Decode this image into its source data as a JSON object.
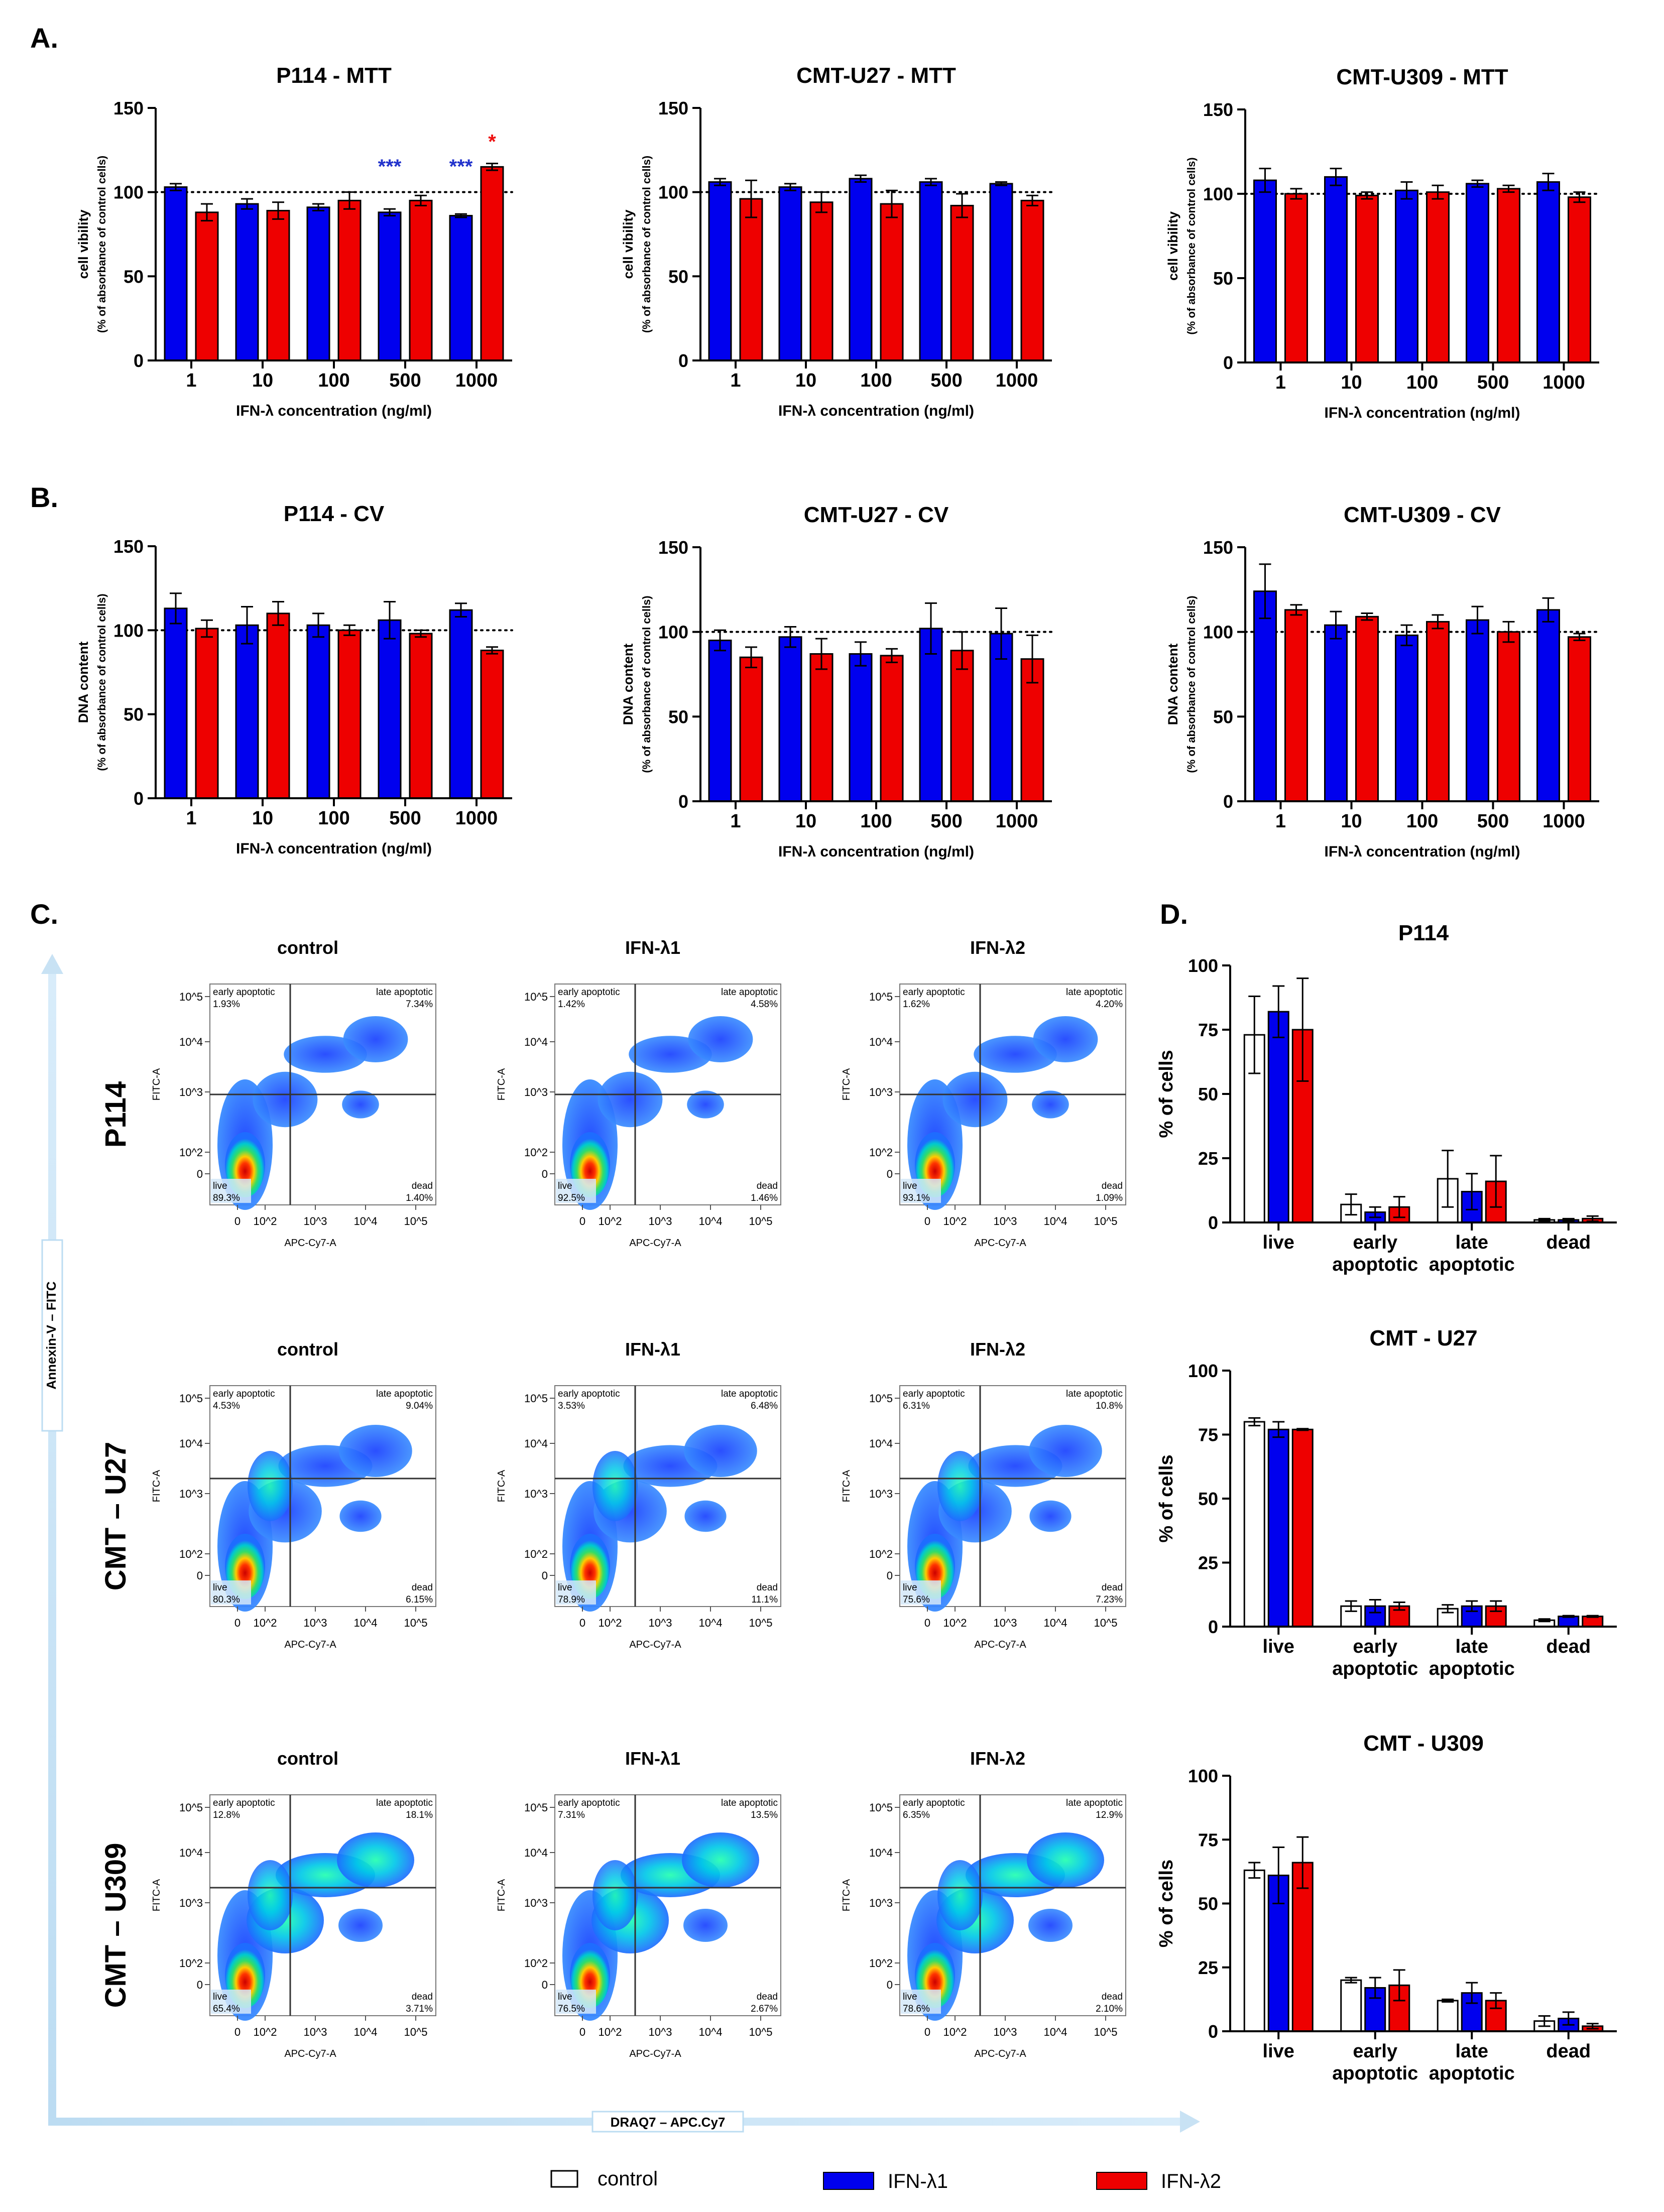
{
  "figure": {
    "panel_labels": [
      "A.",
      "B.",
      "C.",
      "D."
    ],
    "x_axis_title": "IFN-λ concentration (ng/ml)",
    "mtt_ylabel": [
      "cell vibility",
      "(% of absorbance of control cells)"
    ],
    "cv_ylabel": [
      "DNA content",
      "(% of absorbance of control cells)"
    ],
    "pct_ylabel": "% of cells",
    "flow_row_labels": [
      "P114",
      "CMT – U27",
      "CMT – U309"
    ],
    "flow_col_titles": [
      "control",
      "IFN-λ1",
      "IFN-λ2"
    ],
    "flow_y_axis": "FITC-A",
    "flow_x_axis": "APC-Cy7-A",
    "quadrant_names": {
      "early": "early apoptotic",
      "late": "late apoptotic",
      "live": "live",
      "dead": "dead"
    },
    "vertical_arrow_label": "Annexin-V – FITC",
    "horizontal_arrow_label": "DRAQ7 – APC.Cy7",
    "flow_tick_labels": {
      "y": [
        "10^5",
        "10^4",
        "10^3",
        "10^2",
        "0"
      ],
      "x": [
        "0",
        "10^2",
        "10^3",
        "10^4",
        "10^5"
      ]
    }
  },
  "legend": {
    "items": [
      {
        "label": "control",
        "color": "#ffffff"
      },
      {
        "label": "IFN-λ1",
        "color": "#0000ee"
      },
      {
        "label": "IFN-λ2",
        "color": "#ee0000"
      }
    ]
  },
  "colors": {
    "control": "#ffffff",
    "ifn1": "#0000ee",
    "ifn2": "#ee0000",
    "star_blue": "#2233cc",
    "star_red": "#ee1111"
  },
  "chart_data": [
    {
      "id": "A1",
      "type": "bar",
      "title": "P114 - MTT",
      "categories": [
        "1",
        "10",
        "100",
        "500",
        "1000"
      ],
      "ylim": [
        0,
        150
      ],
      "yticks": [
        0,
        50,
        100,
        150
      ],
      "reference_line": 100,
      "series": [
        {
          "name": "IFN-λ1",
          "values": [
            103,
            93,
            91,
            88,
            86
          ],
          "errors": [
            2,
            3,
            2,
            2,
            1
          ]
        },
        {
          "name": "IFN-λ2",
          "values": [
            88,
            89,
            95,
            95,
            115
          ],
          "errors": [
            5,
            5,
            5,
            3,
            2
          ]
        }
      ],
      "annotations": [
        {
          "category": 3,
          "series": 0,
          "text": "***"
        },
        {
          "category": 4,
          "series": 0,
          "text": "***"
        },
        {
          "category": 4,
          "series": 1,
          "text": "*"
        }
      ]
    },
    {
      "id": "A2",
      "type": "bar",
      "title": "CMT-U27 - MTT",
      "categories": [
        "1",
        "10",
        "100",
        "500",
        "1000"
      ],
      "ylim": [
        0,
        150
      ],
      "yticks": [
        0,
        50,
        100,
        150
      ],
      "reference_line": 100,
      "series": [
        {
          "name": "IFN-λ1",
          "values": [
            106,
            103,
            108,
            106,
            105
          ],
          "errors": [
            2,
            2,
            2,
            2,
            1
          ]
        },
        {
          "name": "IFN-λ2",
          "values": [
            96,
            94,
            93,
            92,
            95
          ],
          "errors": [
            11,
            6,
            8,
            7,
            3
          ]
        }
      ],
      "annotations": []
    },
    {
      "id": "A3",
      "type": "bar",
      "title": "CMT-U309 - MTT",
      "categories": [
        "1",
        "10",
        "100",
        "500",
        "1000"
      ],
      "ylim": [
        0,
        150
      ],
      "yticks": [
        0,
        50,
        100,
        150
      ],
      "reference_line": 100,
      "series": [
        {
          "name": "IFN-λ1",
          "values": [
            108,
            110,
            102,
            106,
            107
          ],
          "errors": [
            7,
            5,
            5,
            2,
            5
          ]
        },
        {
          "name": "IFN-λ2",
          "values": [
            100,
            99,
            101,
            103,
            98
          ],
          "errors": [
            3,
            2,
            4,
            2,
            3
          ]
        }
      ],
      "annotations": []
    },
    {
      "id": "B1",
      "type": "bar",
      "title": "P114 - CV",
      "categories": [
        "1",
        "10",
        "100",
        "500",
        "1000"
      ],
      "ylim": [
        0,
        150
      ],
      "yticks": [
        0,
        50,
        100,
        150
      ],
      "reference_line": 100,
      "series": [
        {
          "name": "IFN-λ1",
          "values": [
            113,
            103,
            103,
            106,
            112
          ],
          "errors": [
            9,
            11,
            7,
            11,
            4
          ]
        },
        {
          "name": "IFN-λ2",
          "values": [
            101,
            110,
            100,
            98,
            88
          ],
          "errors": [
            5,
            7,
            3,
            2,
            2
          ]
        }
      ],
      "annotations": []
    },
    {
      "id": "B2",
      "type": "bar",
      "title": "CMT-U27 - CV",
      "categories": [
        "1",
        "10",
        "100",
        "500",
        "1000"
      ],
      "ylim": [
        0,
        150
      ],
      "yticks": [
        0,
        50,
        100,
        150
      ],
      "reference_line": 100,
      "series": [
        {
          "name": "IFN-λ1",
          "values": [
            95,
            97,
            87,
            102,
            99
          ],
          "errors": [
            6,
            6,
            7,
            15,
            15
          ]
        },
        {
          "name": "IFN-λ2",
          "values": [
            85,
            87,
            86,
            89,
            84
          ],
          "errors": [
            6,
            9,
            4,
            11,
            14
          ]
        }
      ],
      "annotations": []
    },
    {
      "id": "B3",
      "type": "bar",
      "title": "CMT-U309 - CV",
      "categories": [
        "1",
        "10",
        "100",
        "500",
        "1000"
      ],
      "ylim": [
        0,
        150
      ],
      "yticks": [
        0,
        50,
        100,
        150
      ],
      "reference_line": 100,
      "series": [
        {
          "name": "IFN-λ1",
          "values": [
            124,
            104,
            98,
            107,
            113
          ],
          "errors": [
            16,
            8,
            6,
            8,
            7
          ]
        },
        {
          "name": "IFN-λ2",
          "values": [
            113,
            109,
            106,
            100,
            97
          ],
          "errors": [
            3,
            2,
            4,
            6,
            2
          ]
        }
      ],
      "annotations": []
    },
    {
      "id": "D1",
      "type": "bar",
      "title": "P114",
      "categories": [
        "live",
        "early\napoptotic",
        "late\napoptotic",
        "dead"
      ],
      "ylim": [
        0,
        100
      ],
      "yticks": [
        0,
        25,
        50,
        75,
        100
      ],
      "ylabel": "% of cells",
      "series": [
        {
          "name": "control",
          "values": [
            73,
            7,
            17,
            1
          ],
          "errors": [
            15,
            4,
            11,
            0.5
          ]
        },
        {
          "name": "IFN-λ1",
          "values": [
            82,
            4,
            12,
            1
          ],
          "errors": [
            10,
            2,
            7,
            0.5
          ]
        },
        {
          "name": "IFN-λ2",
          "values": [
            75,
            6,
            16,
            1.5
          ],
          "errors": [
            20,
            4,
            10,
            1
          ]
        }
      ]
    },
    {
      "id": "D2",
      "type": "bar",
      "title": "CMT - U27",
      "categories": [
        "live",
        "early\napoptotic",
        "late\napoptotic",
        "dead"
      ],
      "ylim": [
        0,
        100
      ],
      "yticks": [
        0,
        25,
        50,
        75,
        100
      ],
      "ylabel": "% of cells",
      "series": [
        {
          "name": "control",
          "values": [
            80,
            8,
            7,
            2.5
          ],
          "errors": [
            1.5,
            2,
            1.5,
            0.5
          ]
        },
        {
          "name": "IFN-λ1",
          "values": [
            77,
            8,
            8,
            4
          ],
          "errors": [
            3,
            2.5,
            2,
            0.3
          ]
        },
        {
          "name": "IFN-λ2",
          "values": [
            77,
            8,
            8,
            4
          ],
          "errors": [
            0.3,
            1.5,
            2,
            0.3
          ]
        }
      ]
    },
    {
      "id": "D3",
      "type": "bar",
      "title": "CMT - U309",
      "categories": [
        "live",
        "early\napoptotic",
        "late\napoptotic",
        "dead"
      ],
      "ylim": [
        0,
        100
      ],
      "yticks": [
        0,
        25,
        50,
        75,
        100
      ],
      "ylabel": "% of cells",
      "series": [
        {
          "name": "control",
          "values": [
            63,
            20,
            12,
            4
          ],
          "errors": [
            3,
            1,
            0.5,
            2
          ]
        },
        {
          "name": "IFN-λ1",
          "values": [
            61,
            17,
            15,
            5
          ],
          "errors": [
            11,
            4,
            4,
            2.5
          ]
        },
        {
          "name": "IFN-λ2",
          "values": [
            66,
            18,
            12,
            2
          ],
          "errors": [
            10,
            6,
            3,
            1
          ]
        }
      ]
    },
    {
      "id": "C",
      "type": "scatter",
      "title": "Annexin-V / DRAQ7 flow cytometry density plots",
      "plots": [
        {
          "row": "P114",
          "col": "control",
          "early": "1.93%",
          "late": "7.34%",
          "live": "89.3%",
          "dead": "1.40%"
        },
        {
          "row": "P114",
          "col": "IFN-λ1",
          "early": "1.42%",
          "late": "4.58%",
          "live": "92.5%",
          "dead": "1.46%"
        },
        {
          "row": "P114",
          "col": "IFN-λ2",
          "early": "1.62%",
          "late": "4.20%",
          "live": "93.1%",
          "dead": "1.09%"
        },
        {
          "row": "CMT – U27",
          "col": "control",
          "early": "4.53%",
          "late": "9.04%",
          "live": "80.3%",
          "dead": "6.15%"
        },
        {
          "row": "CMT – U27",
          "col": "IFN-λ1",
          "early": "3.53%",
          "late": "6.48%",
          "live": "78.9%",
          "dead": "11.1%"
        },
        {
          "row": "CMT – U27",
          "col": "IFN-λ2",
          "early": "6.31%",
          "late": "10.8%",
          "live": "75.6%",
          "dead": "7.23%"
        },
        {
          "row": "CMT – U309",
          "col": "control",
          "early": "12.8%",
          "late": "18.1%",
          "live": "65.4%",
          "dead": "3.71%"
        },
        {
          "row": "CMT – U309",
          "col": "IFN-λ1",
          "early": "7.31%",
          "late": "13.5%",
          "live": "76.5%",
          "dead": "2.67%"
        },
        {
          "row": "CMT – U309",
          "col": "IFN-λ2",
          "early": "6.35%",
          "late": "12.9%",
          "live": "78.6%",
          "dead": "2.10%"
        }
      ]
    }
  ]
}
